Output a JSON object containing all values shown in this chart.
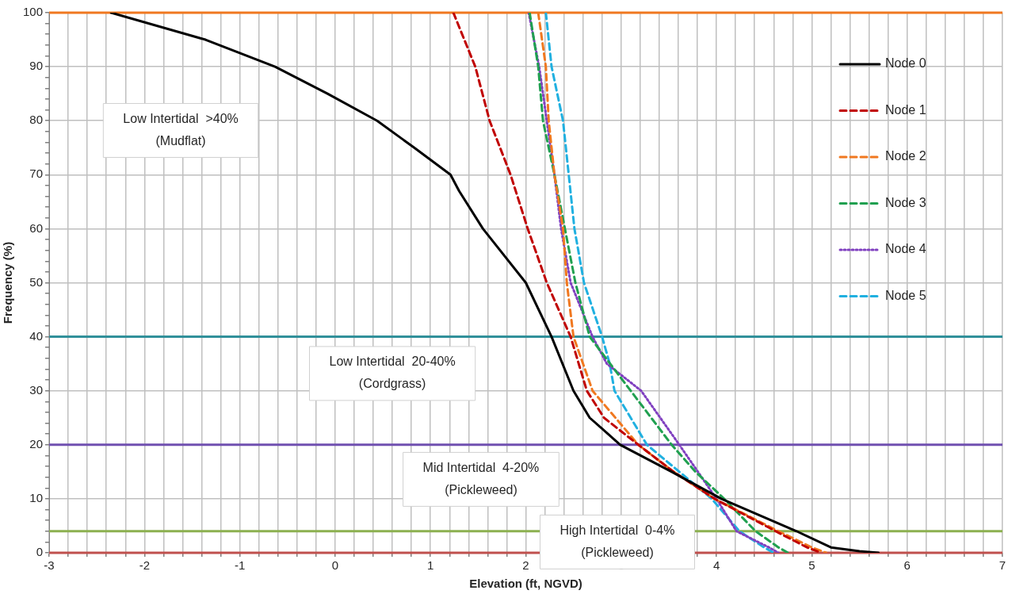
{
  "chart_data": {
    "type": "line",
    "xlabel": "Elevation (ft, NGVD)",
    "ylabel": "Frequency (%)",
    "xlim": [
      -3,
      7
    ],
    "ylim": [
      0,
      100
    ],
    "xticks": [
      -3,
      {
        "value": -2.8,
        "label": null
      },
      {
        "value": -2.6,
        "label": null
      },
      {
        "value": -2.4,
        "label": null
      },
      {
        "value": -2.2,
        "label": null
      },
      -2,
      {
        "value": -1.8,
        "label": null
      },
      {
        "value": -1.6,
        "label": null
      },
      {
        "value": -1.4,
        "label": null
      },
      {
        "value": -1.2,
        "label": null
      },
      -1,
      {
        "value": -0.8,
        "label": null
      },
      {
        "value": -0.6,
        "label": null
      },
      {
        "value": -0.4,
        "label": null
      },
      {
        "value": -0.2,
        "label": null
      },
      0,
      {
        "value": 0.2,
        "label": null
      },
      {
        "value": 0.4,
        "label": null
      },
      {
        "value": 0.6,
        "label": null
      },
      {
        "value": 0.8,
        "label": null
      },
      1,
      {
        "value": 1.2,
        "label": null
      },
      {
        "value": 1.4,
        "label": null
      },
      {
        "value": 1.6,
        "label": null
      },
      {
        "value": 1.8,
        "label": null
      },
      2,
      {
        "value": 2.2,
        "label": null
      },
      {
        "value": 2.4,
        "label": null
      },
      {
        "value": 2.6,
        "label": null
      },
      {
        "value": 2.8,
        "label": null
      },
      3,
      {
        "value": 3.2,
        "label": null
      },
      {
        "value": 3.4,
        "label": null
      },
      {
        "value": 3.6,
        "label": null
      },
      {
        "value": 3.8,
        "label": null
      },
      4,
      {
        "value": 4.2,
        "label": null
      },
      {
        "value": 4.4,
        "label": null
      },
      {
        "value": 4.6,
        "label": null
      },
      {
        "value": 4.8,
        "label": null
      },
      5,
      {
        "value": 5.2,
        "label": null
      },
      {
        "value": 5.4,
        "label": null
      },
      {
        "value": 5.6,
        "label": null
      },
      {
        "value": 5.8,
        "label": null
      },
      6,
      {
        "value": 6.2,
        "label": null
      },
      {
        "value": 6.4,
        "label": null
      },
      {
        "value": 6.6,
        "label": null
      },
      {
        "value": 6.8,
        "label": null
      },
      7
    ],
    "yticks": [
      0,
      {
        "value": 2,
        "label": null
      },
      {
        "value": 4,
        "label": null
      },
      {
        "value": 6,
        "label": null
      },
      {
        "value": 8,
        "label": null
      },
      10,
      {
        "value": 12,
        "label": null
      },
      {
        "value": 14,
        "label": null
      },
      {
        "value": 16,
        "label": null
      },
      {
        "value": 18,
        "label": null
      },
      20,
      {
        "value": 22,
        "label": null
      },
      {
        "value": 24,
        "label": null
      },
      {
        "value": 26,
        "label": null
      },
      {
        "value": 28,
        "label": null
      },
      30,
      {
        "value": 32,
        "label": null
      },
      {
        "value": 34,
        "label": null
      },
      {
        "value": 36,
        "label": null
      },
      {
        "value": 38,
        "label": null
      },
      40,
      {
        "value": 42,
        "label": null
      },
      {
        "value": 44,
        "label": null
      },
      {
        "value": 46,
        "label": null
      },
      {
        "value": 48,
        "label": null
      },
      50,
      {
        "value": 52,
        "label": null
      },
      {
        "value": 54,
        "label": null
      },
      {
        "value": 56,
        "label": null
      },
      {
        "value": 58,
        "label": null
      },
      60,
      {
        "value": 62,
        "label": null
      },
      {
        "value": 64,
        "label": null
      },
      {
        "value": 66,
        "label": null
      },
      {
        "value": 68,
        "label": null
      },
      70,
      {
        "value": 72,
        "label": null
      },
      {
        "value": 74,
        "label": null
      },
      {
        "value": 76,
        "label": null
      },
      {
        "value": 78,
        "label": null
      },
      80,
      {
        "value": 82,
        "label": null
      },
      {
        "value": 84,
        "label": null
      },
      {
        "value": 86,
        "label": null
      },
      {
        "value": 88,
        "label": null
      },
      90,
      {
        "value": 92,
        "label": null
      },
      {
        "value": 94,
        "label": null
      },
      {
        "value": 96,
        "label": null
      },
      {
        "value": 98,
        "label": null
      },
      100
    ],
    "grid": true,
    "legend": "top right",
    "marker": "none",
    "series": [
      {
        "name": "Node 0",
        "color": "#000000",
        "line_style": "solid",
        "x": [
          -2.35,
          -1.36,
          -0.63,
          -0.08,
          0.44,
          0.83,
          1.21,
          1.3,
          1.55,
          2.0,
          2.27,
          2.5,
          2.67,
          2.99,
          3.53,
          4.05,
          4.84,
          5.2,
          5.5,
          5.7
        ],
        "values": [
          100,
          95,
          90,
          85,
          80,
          75,
          70,
          67,
          60,
          50,
          40,
          30,
          25,
          20,
          15,
          10,
          4,
          1,
          0.3,
          0
        ]
      },
      {
        "name": "Node 1",
        "color": "#c00000",
        "line_style": "dashed",
        "x": [
          1.24,
          1.47,
          1.62,
          1.84,
          2.02,
          2.22,
          2.47,
          2.64,
          2.82,
          3.18,
          3.55,
          3.98,
          4.62,
          4.95,
          5.1
        ],
        "values": [
          100,
          90,
          80,
          70,
          60,
          50,
          40,
          30,
          25,
          20,
          15,
          10,
          4,
          1,
          0
        ]
      },
      {
        "name": "Node 2",
        "color": "#f07820",
        "line_style": "dashed",
        "x": [
          2.13,
          2.21,
          2.24,
          2.3,
          2.39,
          2.43,
          2.5,
          2.7,
          3.18,
          3.55,
          3.98,
          4.65,
          5.0,
          5.15
        ],
        "values": [
          100,
          90,
          80,
          70,
          60,
          50,
          40,
          30,
          20,
          15,
          10,
          4,
          1,
          0
        ]
      },
      {
        "name": "Node 3",
        "color": "#20a050",
        "line_style": "dashed",
        "x": [
          2.04,
          2.13,
          2.18,
          2.3,
          2.41,
          2.52,
          2.67,
          3.1,
          3.53,
          3.78,
          4.08,
          4.41,
          4.65,
          4.75
        ],
        "values": [
          100,
          90,
          80,
          70,
          60,
          50,
          40,
          30,
          20,
          15,
          10,
          4,
          1,
          0
        ]
      },
      {
        "name": "Node 4",
        "color": "#8040c0",
        "line_style": "dotted",
        "x": [
          2.03,
          2.14,
          2.22,
          2.3,
          2.37,
          2.47,
          2.7,
          2.85,
          3.21,
          3.61,
          4.0,
          4.21,
          4.55,
          4.65
        ],
        "values": [
          100,
          90,
          80,
          70,
          60,
          50,
          40,
          35,
          30,
          20,
          10,
          4,
          1,
          0
        ]
      },
      {
        "name": "Node 5",
        "color": "#20b0e0",
        "line_style": "dashed",
        "x": [
          2.21,
          2.27,
          2.39,
          2.45,
          2.51,
          2.61,
          2.8,
          2.88,
          2.93,
          3.27,
          3.61,
          3.95,
          4.24,
          4.5,
          4.6
        ],
        "values": [
          100,
          90,
          80,
          70,
          60,
          50,
          40,
          35,
          30,
          20,
          15,
          10,
          4,
          1,
          0
        ]
      }
    ],
    "ref_lines": [
      {
        "axis": "y",
        "value": 100,
        "color": "#f07820"
      },
      {
        "axis": "y",
        "value": 40,
        "color": "#31909a"
      },
      {
        "axis": "y",
        "value": 20,
        "color": "#7050b0"
      },
      {
        "axis": "y",
        "value": 4,
        "color": "#8cb050"
      },
      {
        "axis": "y",
        "value": 0,
        "color": "#c0504d"
      }
    ],
    "annotations": [
      "Low Intertidal  >40%\n(Mudflat)",
      "Low Intertidal  20-40%\n(Cordgrass)",
      "Mid Intertidal  4-20%\n(Pickleweed)",
      "High Intertidal  0-4%\n(Pickleweed)"
    ]
  }
}
